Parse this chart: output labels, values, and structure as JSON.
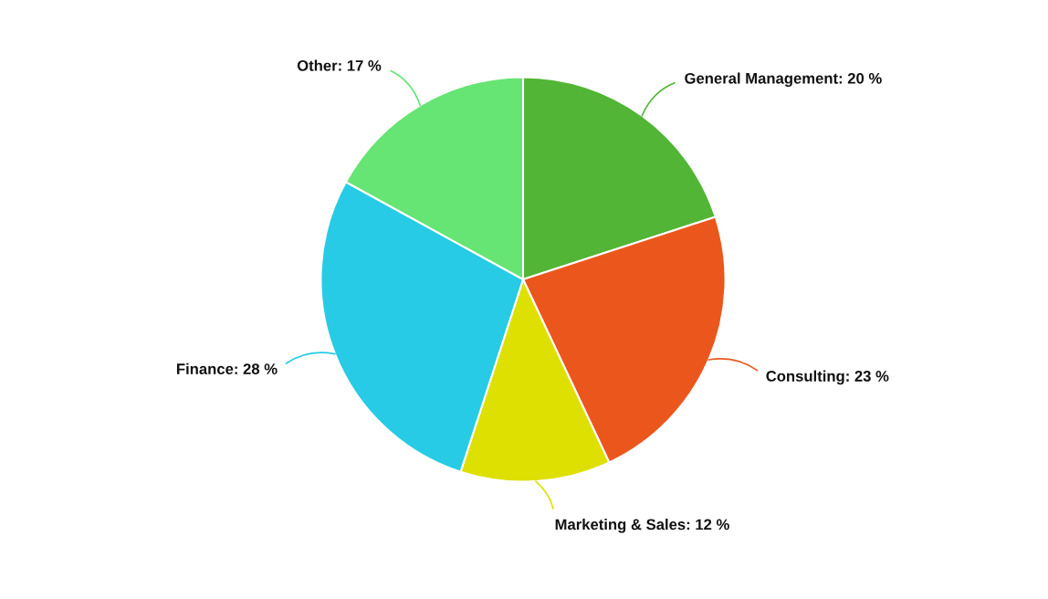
{
  "chart_data": {
    "type": "pie",
    "categories": [
      "General Management",
      "Consulting",
      "Marketing & Sales",
      "Finance",
      "Other"
    ],
    "values": [
      20,
      23,
      12,
      28,
      17
    ],
    "value_labels": [
      "20 %",
      "23 %",
      "12 %",
      "28 %",
      "17 %"
    ],
    "colors": [
      "#52b535",
      "#eb561d",
      "#dde000",
      "#27cbe5",
      "#66e474"
    ],
    "legend": false
  }
}
